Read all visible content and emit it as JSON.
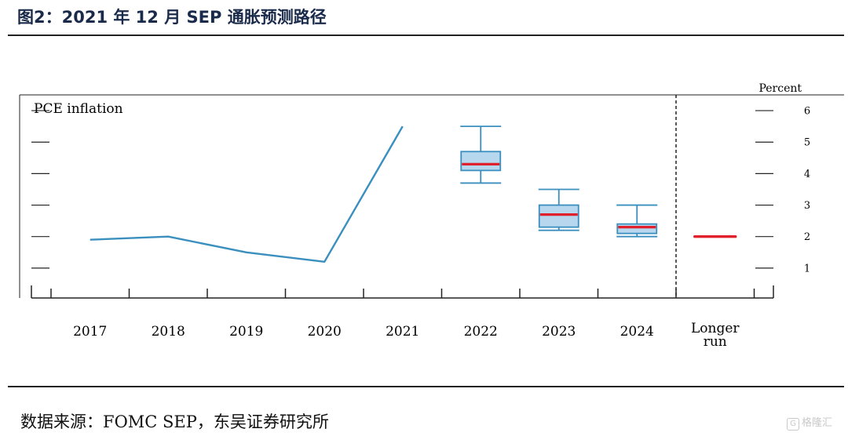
{
  "figure_title": "图2：2021 年 12 月 SEP 通胀预测路径",
  "source_text": "数据来源：FOMC SEP，东吴证券研究所",
  "watermark": {
    "icon_char": "G",
    "text": "格隆汇"
  },
  "chart_data": {
    "type": "line",
    "panel_label": "PCE inflation",
    "unit_label": "Percent",
    "categories": [
      "2017",
      "2018",
      "2019",
      "2020",
      "2021",
      "2022",
      "2023",
      "2024",
      "Longer run"
    ],
    "category_labels": [
      [
        "2017"
      ],
      [
        "2018"
      ],
      [
        "2019"
      ],
      [
        "2020"
      ],
      [
        "2021"
      ],
      [
        "2022"
      ],
      [
        "2023"
      ],
      [
        "2024"
      ],
      [
        "Longer",
        "run"
      ]
    ],
    "yticks": [
      1,
      2,
      3,
      4,
      5,
      6
    ],
    "ylim": [
      0.05,
      6.5
    ],
    "history": {
      "x": [
        "2017",
        "2018",
        "2019",
        "2020",
        "2021"
      ],
      "values": [
        1.9,
        2.0,
        1.5,
        1.2,
        5.5
      ]
    },
    "projections": [
      {
        "year": "2022",
        "min": 3.7,
        "q1": 4.1,
        "median": 4.3,
        "q3": 4.7,
        "max": 5.5
      },
      {
        "year": "2023",
        "min": 2.2,
        "q1": 2.3,
        "median": 2.7,
        "q3": 3.0,
        "max": 3.5
      },
      {
        "year": "2024",
        "min": 2.0,
        "q1": 2.1,
        "median": 2.3,
        "q3": 2.4,
        "max": 3.0
      }
    ],
    "longer_run": {
      "median": 2.0
    },
    "colors": {
      "line": "#3a8fbf",
      "box_fill": "#b6d7ee",
      "box_stroke": "#3a8fbf",
      "median": "#e0202a",
      "axis": "#222222"
    },
    "grid": false
  }
}
